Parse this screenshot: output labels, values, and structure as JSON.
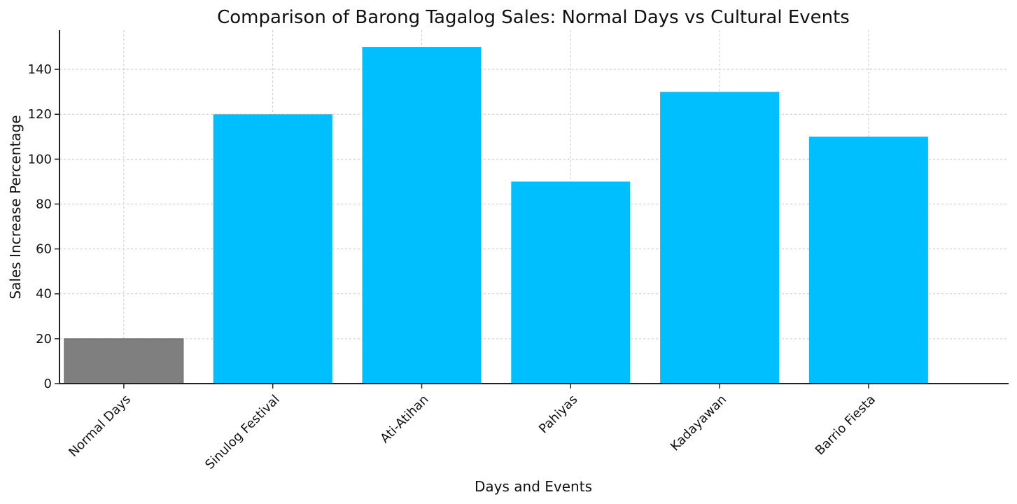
{
  "chart_data": {
    "type": "bar",
    "title": "Comparison of Barong Tagalog Sales: Normal Days vs Cultural Events",
    "xlabel": "Days and Events",
    "ylabel": "Sales Increase Percentage",
    "categories": [
      "Normal Days",
      "Sinulog Festival",
      "Ati-Atihan",
      "Pahiyas",
      "Kadayawan",
      "Barrio Fiesta"
    ],
    "values": [
      20,
      120,
      150,
      90,
      130,
      110
    ],
    "bar_colors": [
      "#7f7f7f",
      "#00bfff",
      "#00bfff",
      "#00bfff",
      "#00bfff",
      "#00bfff"
    ],
    "ylim": [
      0,
      157.5
    ],
    "yticks": [
      0,
      20,
      40,
      60,
      80,
      100,
      120,
      140
    ],
    "grid": true,
    "legend": "none"
  }
}
